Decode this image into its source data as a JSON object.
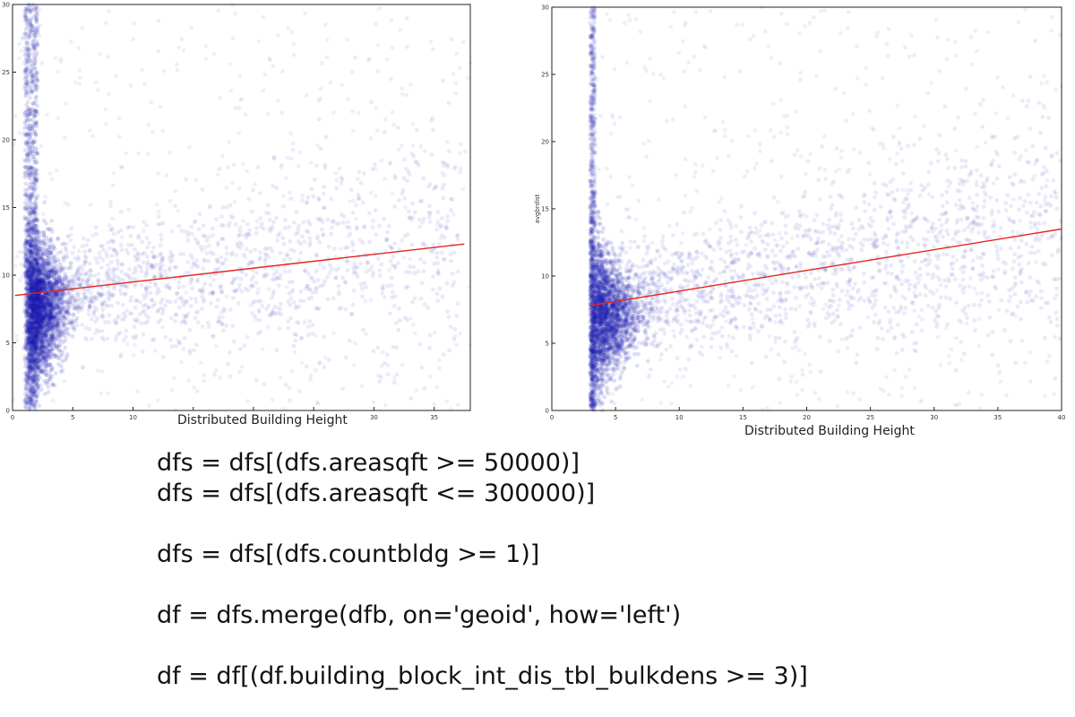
{
  "chart_data": [
    {
      "type": "scatter",
      "xlabel": "Distributed Building Height",
      "ylabel": "",
      "xlim": [
        0,
        38
      ],
      "ylim": [
        0,
        30
      ],
      "xticks": [
        0,
        5,
        10,
        15,
        20,
        25,
        30,
        35
      ],
      "yticks": [
        0,
        5,
        10,
        15,
        20,
        25,
        30
      ],
      "point_color": "#1a1ab0",
      "line_color": "#e8231c",
      "trend_line": {
        "x": [
          0.2,
          37.5
        ],
        "y": [
          8.5,
          12.3
        ]
      },
      "points_summary": {
        "x_concentration": 1.5,
        "y_center": 7.5,
        "alpha": "low"
      }
    },
    {
      "type": "scatter",
      "xlabel": "Distributed Building Height",
      "ylabel": "avgbrdist",
      "xlim": [
        0,
        40
      ],
      "ylim": [
        0,
        30
      ],
      "xticks": [
        0,
        5,
        10,
        15,
        20,
        25,
        30,
        35,
        40
      ],
      "yticks": [
        0,
        5,
        10,
        15,
        20,
        25,
        30
      ],
      "point_color": "#1a1ab0",
      "line_color": "#e8231c",
      "trend_line": {
        "x": [
          3,
          40
        ],
        "y": [
          7.8,
          13.5
        ]
      },
      "points_summary": {
        "x_min": 3,
        "y_center": 7,
        "alpha": "low"
      }
    }
  ],
  "code": {
    "lines": [
      "dfs = dfs[(dfs.areasqft >= 50000)]",
      "dfs = dfs[(dfs.areasqft <= 300000)]",
      "",
      "dfs = dfs[(dfs.countbldg >= 1)]",
      "",
      "df = dfs.merge(dfb, on='geoid', how='left')",
      "",
      "df = df[(df.building_block_int_dis_tbl_bulkdens >= 3)]"
    ]
  }
}
